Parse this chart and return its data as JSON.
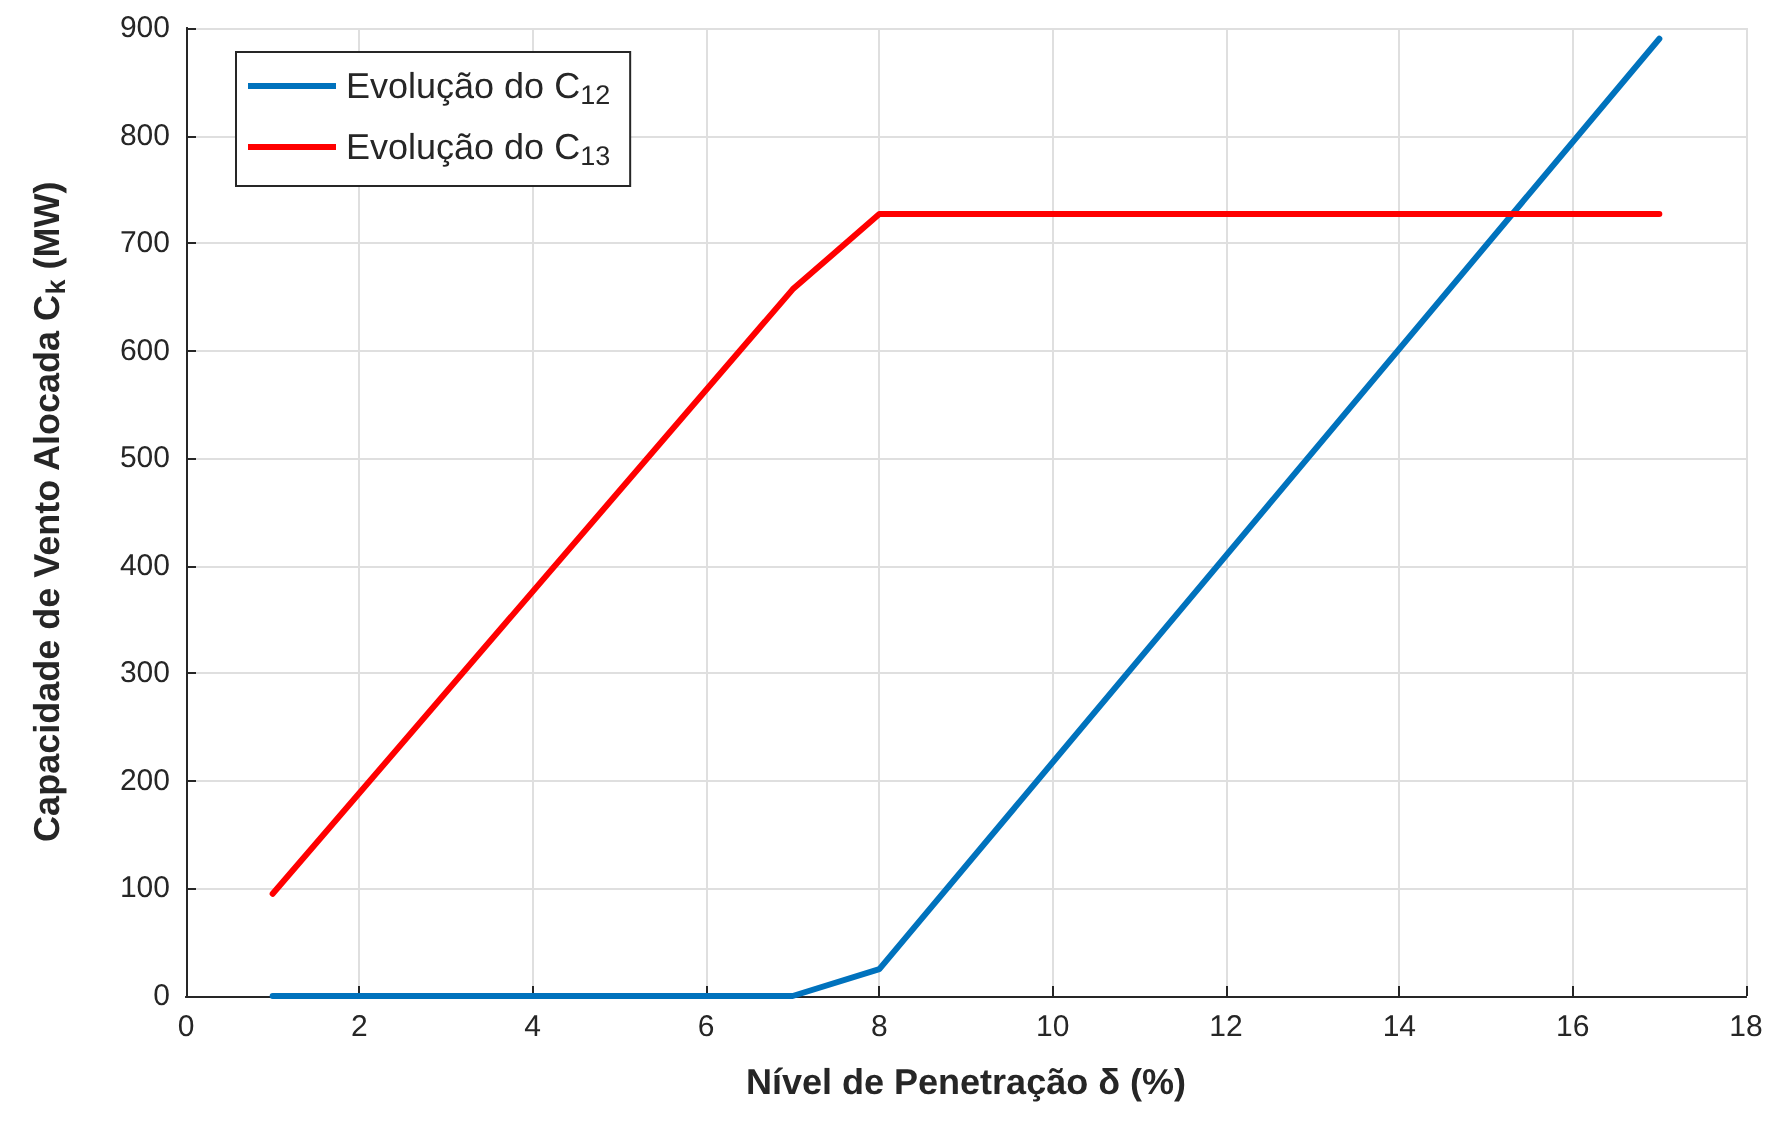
{
  "chart_data": {
    "type": "line",
    "xlabel": "Nível de Penetração δ (%)",
    "ylabel": "Capacidade de Vento Alocada C$_{k}$ (MW)",
    "x": [
      1,
      7,
      8,
      17
    ],
    "series": [
      {
        "name": "Evolução do C$_{12}$",
        "color": "#0072bd",
        "values": [
          0,
          0,
          25,
          890
        ]
      },
      {
        "name": "Evolução do C$_{13}$",
        "color": "#ff0000",
        "values": [
          95,
          657,
          727,
          727
        ]
      }
    ],
    "xlim": [
      0,
      18
    ],
    "xticks": [
      0,
      2,
      4,
      6,
      8,
      10,
      12,
      14,
      16,
      18
    ],
    "ylim": [
      0,
      900
    ],
    "yticks": [
      0,
      100,
      200,
      300,
      400,
      500,
      600,
      700,
      800,
      900
    ],
    "grid": true,
    "legend": "top left",
    "marker": "none",
    "line_style": "solid"
  }
}
